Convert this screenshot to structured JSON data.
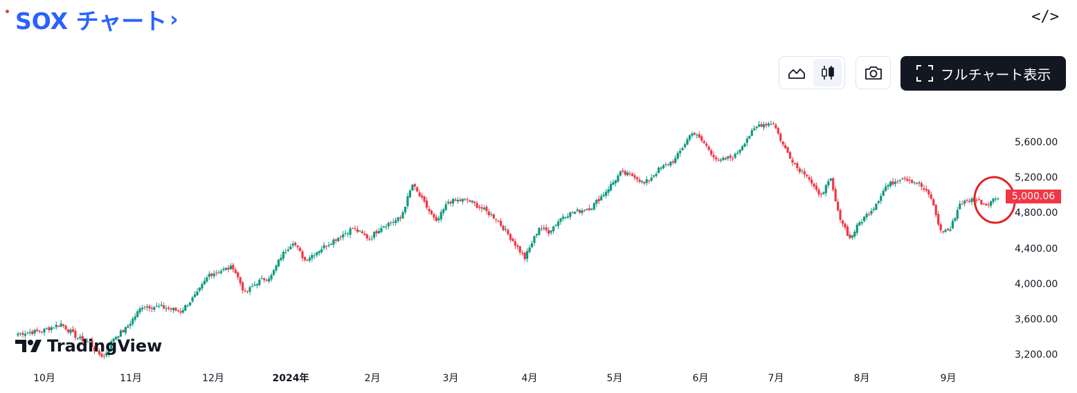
{
  "header": {
    "title": "SOX チャート",
    "embed_label": "</>"
  },
  "toolbar": {
    "fullchart_label": "フルチャート表示"
  },
  "colors": {
    "up": "#089981",
    "down": "#f23645",
    "accent": "#2962ff"
  },
  "chart_data": {
    "type": "candlestick",
    "y_ticks": [
      "5,600.00",
      "5,200.00",
      "4,800.00",
      "4,400.00",
      "4,000.00",
      "3,600.00",
      "3,200.00"
    ],
    "x_ticks": [
      "10月",
      "11月",
      "12月",
      "2024年",
      "2月",
      "3月",
      "4月",
      "5月",
      "6月",
      "7月",
      "8月",
      "9月"
    ],
    "ylim": [
      3100,
      5950
    ],
    "last_price": "5,000.06",
    "anchors": [
      [
        0,
        3450
      ],
      [
        10,
        3480
      ],
      [
        18,
        3560
      ],
      [
        25,
        3400
      ],
      [
        30,
        3350
      ],
      [
        33,
        3230
      ],
      [
        36,
        3190
      ],
      [
        40,
        3400
      ],
      [
        45,
        3500
      ],
      [
        52,
        3760
      ],
      [
        60,
        3750
      ],
      [
        68,
        3700
      ],
      [
        75,
        3900
      ],
      [
        80,
        4120
      ],
      [
        86,
        4170
      ],
      [
        90,
        4200
      ],
      [
        95,
        3900
      ],
      [
        100,
        4030
      ],
      [
        106,
        4100
      ],
      [
        110,
        4320
      ],
      [
        115,
        4490
      ],
      [
        120,
        4280
      ],
      [
        130,
        4470
      ],
      [
        140,
        4640
      ],
      [
        147,
        4520
      ],
      [
        152,
        4660
      ],
      [
        160,
        4750
      ],
      [
        165,
        5130
      ],
      [
        170,
        4920
      ],
      [
        175,
        4700
      ],
      [
        180,
        4940
      ],
      [
        188,
        4960
      ],
      [
        193,
        4880
      ],
      [
        200,
        4750
      ],
      [
        207,
        4500
      ],
      [
        212,
        4300
      ],
      [
        218,
        4650
      ],
      [
        222,
        4600
      ],
      [
        228,
        4780
      ],
      [
        240,
        4880
      ],
      [
        246,
        5060
      ],
      [
        252,
        5260
      ],
      [
        258,
        5230
      ],
      [
        262,
        5140
      ],
      [
        268,
        5300
      ],
      [
        275,
        5420
      ],
      [
        282,
        5730
      ],
      [
        287,
        5600
      ],
      [
        293,
        5390
      ],
      [
        300,
        5460
      ],
      [
        305,
        5660
      ],
      [
        310,
        5810
      ],
      [
        316,
        5830
      ],
      [
        320,
        5580
      ],
      [
        326,
        5320
      ],
      [
        330,
        5250
      ],
      [
        335,
        5000
      ],
      [
        340,
        5180
      ],
      [
        343,
        4820
      ],
      [
        348,
        4520
      ],
      [
        352,
        4700
      ],
      [
        358,
        4880
      ],
      [
        363,
        5110
      ],
      [
        370,
        5220
      ],
      [
        377,
        5140
      ],
      [
        382,
        4980
      ],
      [
        386,
        4600
      ],
      [
        390,
        4630
      ],
      [
        394,
        4920
      ],
      [
        400,
        4970
      ],
      [
        405,
        4910
      ],
      [
        410,
        5000
      ]
    ]
  }
}
